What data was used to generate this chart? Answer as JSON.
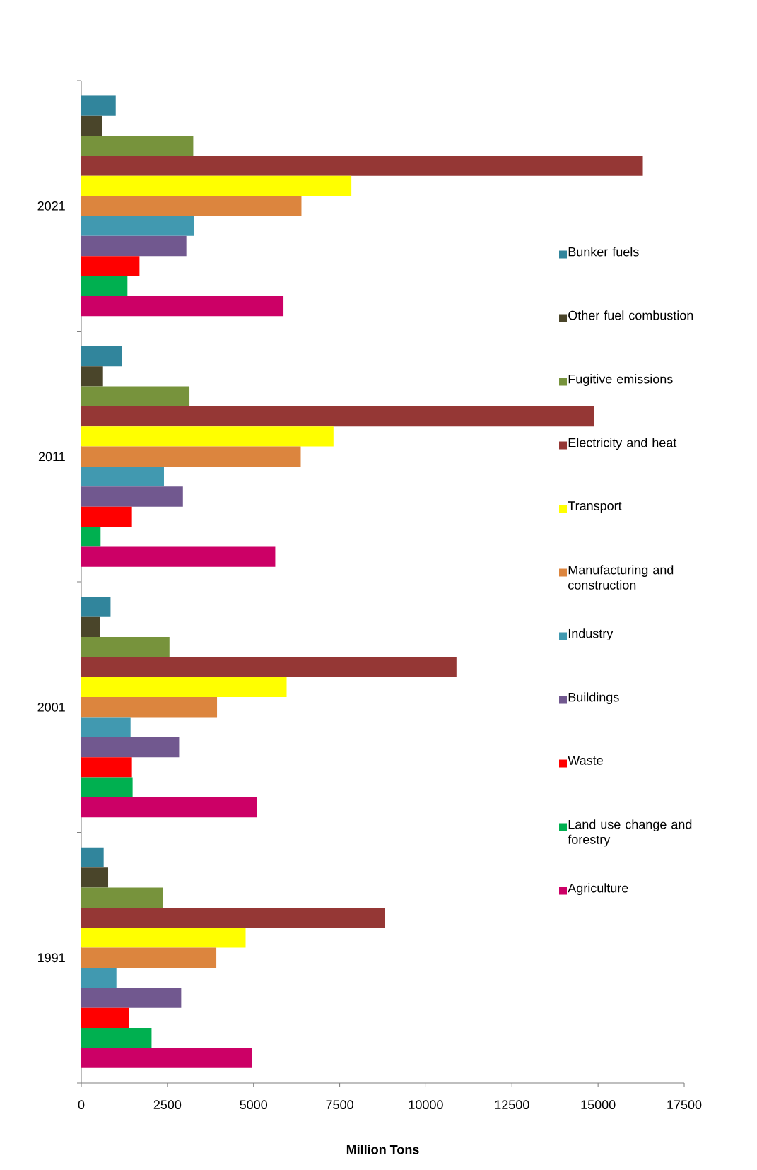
{
  "chart_data": {
    "type": "bar",
    "orientation": "horizontal",
    "xlabel": "Million Tons",
    "categories": [
      "2021",
      "2011",
      "2001",
      "1991"
    ],
    "xlim": [
      0,
      17500
    ],
    "xticks": [
      0,
      2500,
      5000,
      7500,
      10000,
      12500,
      15000,
      17500
    ],
    "legend": "right",
    "series": [
      {
        "name": "Bunker fuels",
        "color": "#31859c",
        "values": [
          1000,
          1170,
          850,
          650
        ]
      },
      {
        "name": "Other fuel combustion",
        "color": "#4a452a",
        "values": [
          600,
          630,
          540,
          780
        ]
      },
      {
        "name": "Fugitive emissions",
        "color": "#77933c",
        "values": [
          3250,
          3140,
          2560,
          2360
        ]
      },
      {
        "name": "Electricity and heat",
        "color": "#953735",
        "values": [
          16300,
          14880,
          10890,
          8820
        ]
      },
      {
        "name": "Transport",
        "color": "#ffff00",
        "values": [
          7840,
          7320,
          5960,
          4770
        ]
      },
      {
        "name": "Manufacturing and construction",
        "color": "#dc853e",
        "values": [
          6390,
          6370,
          3940,
          3920
        ]
      },
      {
        "name": "Industry",
        "color": "#4199b0",
        "values": [
          3270,
          2400,
          1430,
          1020
        ]
      },
      {
        "name": "Buildings",
        "color": "#71588f",
        "values": [
          3050,
          2950,
          2840,
          2900
        ]
      },
      {
        "name": "Waste",
        "color": "#ff0000",
        "values": [
          1690,
          1470,
          1470,
          1390
        ]
      },
      {
        "name": "Land use change and forestry",
        "color": "#00b050",
        "values": [
          1340,
          560,
          1490,
          2040
        ]
      },
      {
        "name": "Agriculture",
        "color": "#cc0066",
        "values": [
          5870,
          5630,
          5090,
          4960
        ]
      }
    ]
  }
}
